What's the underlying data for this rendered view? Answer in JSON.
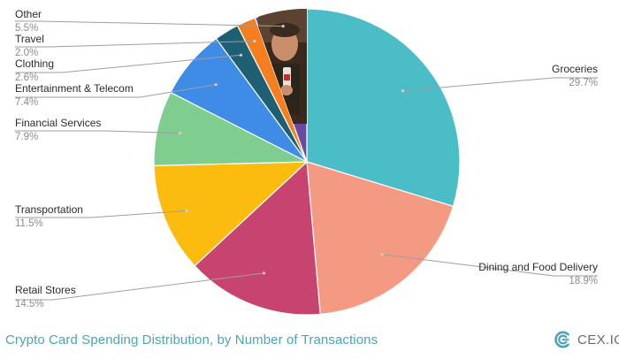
{
  "chart_data": {
    "type": "pie",
    "title": "Crypto Card Spending Distribution, by Number of Transactions",
    "slices": [
      {
        "label": "Groceries",
        "value": 29.7,
        "display": "29.7%",
        "color": "#4bbdc7"
      },
      {
        "label": "Dining and Food Delivery",
        "value": 18.9,
        "display": "18.9%",
        "color": "#f59a82"
      },
      {
        "label": "Retail Stores",
        "value": 14.5,
        "display": "14.5%",
        "color": "#c84470"
      },
      {
        "label": "Transportation",
        "value": 11.5,
        "display": "11.5%",
        "color": "#fbbc0f"
      },
      {
        "label": "Financial Services",
        "value": 7.9,
        "display": "7.9%",
        "color": "#7fcd8f"
      },
      {
        "label": "Entertainment & Telecom",
        "value": 7.4,
        "display": "7.4%",
        "color": "#3f8ce6"
      },
      {
        "label": "Clothing",
        "value": 2.6,
        "display": "2.6%",
        "color": "#1f5f74"
      },
      {
        "label": "Travel",
        "value": 2.0,
        "display": "2.0%",
        "color": "#f57f1e"
      },
      {
        "label": "Other",
        "value": 5.5,
        "display": "5.5%",
        "color": "#6a4aa0"
      }
    ]
  },
  "brand": {
    "name": "CEX.IO",
    "color": "#4aa3b8"
  }
}
